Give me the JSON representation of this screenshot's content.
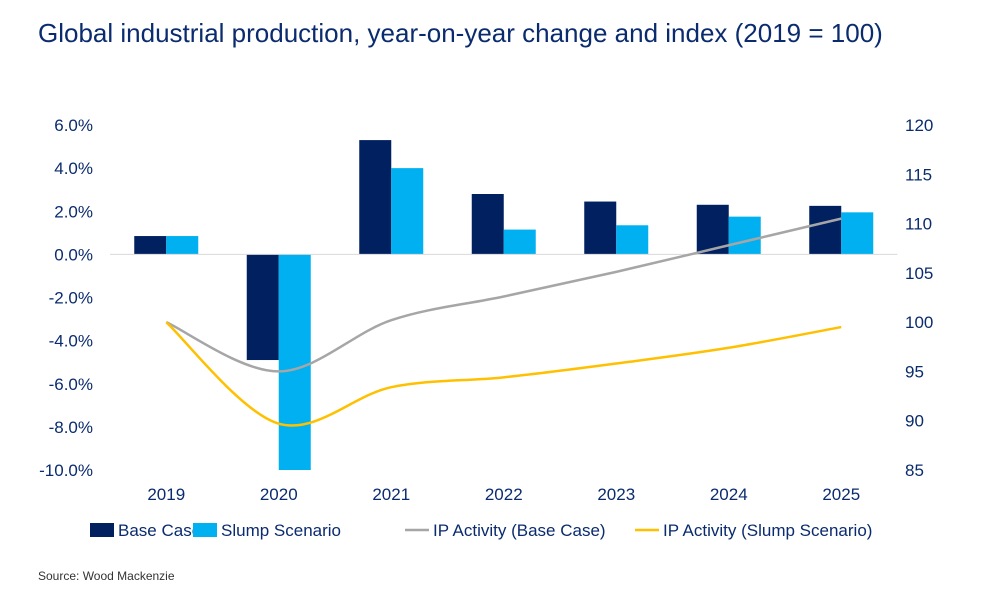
{
  "chart_data": {
    "type": "bar",
    "title": "Global industrial production, year-on-year change and index (2019 = 100)",
    "categories": [
      "2019",
      "2020",
      "2021",
      "2022",
      "2023",
      "2024",
      "2025"
    ],
    "left_axis": {
      "ylim": [
        -10,
        6
      ],
      "ticks": [
        "6.0%",
        "4.0%",
        "2.0%",
        "0.0%",
        "-2.0%",
        "-4.0%",
        "-6.0%",
        "-8.0%",
        "-10.0%"
      ],
      "unit": "%"
    },
    "right_axis": {
      "ylim": [
        85,
        120
      ],
      "ticks": [
        "120",
        "115",
        "110",
        "105",
        "100",
        "95",
        "90",
        "85"
      ]
    },
    "series": [
      {
        "name": "Base Case",
        "type": "bar",
        "axis": "left",
        "color": "#002060",
        "values": [
          0.85,
          -4.9,
          5.3,
          2.8,
          2.45,
          2.3,
          2.25
        ]
      },
      {
        "name": "Slump Scenario",
        "type": "bar",
        "axis": "left",
        "color": "#00b0f0",
        "values": [
          0.85,
          -10.0,
          4.0,
          1.15,
          1.35,
          1.75,
          1.95
        ]
      },
      {
        "name": "IP Activity (Base Case)",
        "type": "line",
        "axis": "right",
        "color": "#a6a6a6",
        "values": [
          100,
          95.0,
          100.2,
          102.6,
          105.1,
          107.8,
          110.5
        ]
      },
      {
        "name": "IP Activity (Slump Scenario)",
        "type": "line",
        "axis": "right",
        "color": "#ffc000",
        "values": [
          100,
          89.7,
          93.4,
          94.4,
          95.8,
          97.4,
          99.5
        ]
      }
    ],
    "legend": "bottom",
    "grid": false
  },
  "source": "Source: Wood Mackenzie"
}
